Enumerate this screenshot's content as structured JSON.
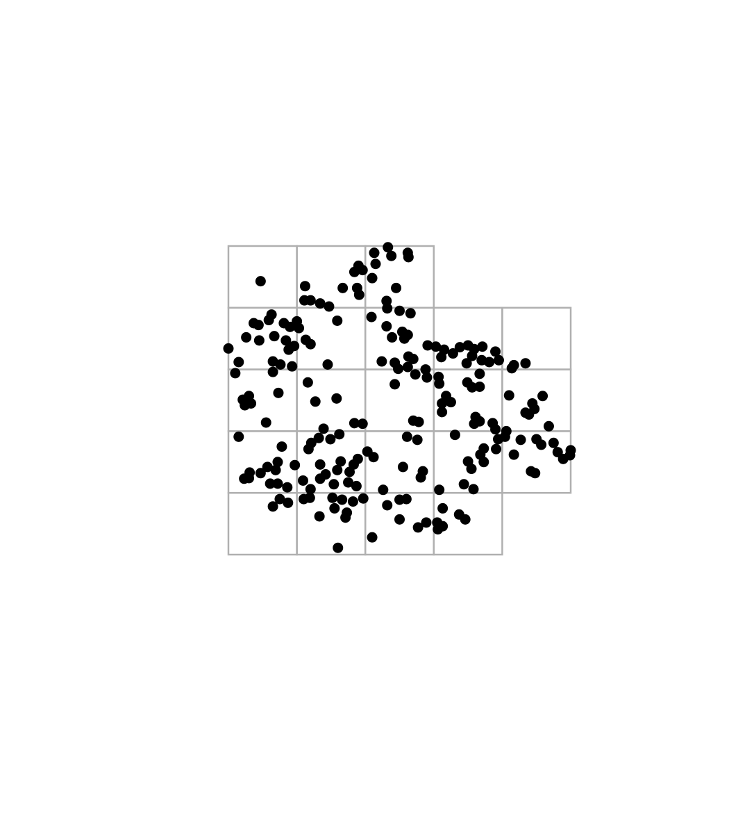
{
  "chart_data": {
    "type": "scatter",
    "color": "#000000",
    "grid_color": "#b0b0b0",
    "xlim": [
      0,
      5
    ],
    "ylim": [
      0,
      5
    ],
    "cells": [
      [
        0,
        4
      ],
      [
        1,
        4
      ],
      [
        2,
        4
      ],
      [
        0,
        3
      ],
      [
        1,
        3
      ],
      [
        2,
        3
      ],
      [
        3,
        3
      ],
      [
        4,
        3
      ],
      [
        0,
        2
      ],
      [
        1,
        2
      ],
      [
        2,
        2
      ],
      [
        3,
        2
      ],
      [
        4,
        2
      ],
      [
        0,
        1
      ],
      [
        1,
        1
      ],
      [
        2,
        1
      ],
      [
        3,
        1
      ],
      [
        4,
        1
      ],
      [
        0,
        0
      ],
      [
        1,
        0
      ],
      [
        2,
        0
      ],
      [
        3,
        0
      ]
    ],
    "x": [
      0.47,
      0.0,
      1.12,
      1.11,
      1.2,
      1.34,
      1.47,
      1.67,
      1.88,
      1.91,
      1.84,
      1.9,
      1.96,
      2.1,
      2.13,
      2.15,
      2.33,
      2.38,
      2.62,
      2.63,
      2.45,
      2.31,
      2.32,
      2.5,
      2.66,
      2.09,
      1.59,
      0.63,
      0.59,
      0.37,
      0.44,
      0.81,
      0.9,
      1.0,
      1.03,
      0.26,
      0.45,
      0.67,
      0.84,
      0.88,
      0.96,
      1.13,
      1.2,
      0.15,
      0.1,
      0.65,
      0.76,
      0.93,
      0.65,
      1.45,
      2.31,
      2.39,
      2.54,
      2.57,
      2.62,
      2.24,
      2.43,
      2.48,
      2.63,
      2.7,
      2.62,
      2.73,
      2.88,
      2.9,
      2.43,
      2.91,
      3.03,
      3.15,
      3.11,
      3.28,
      3.38,
      3.5,
      3.59,
      3.71,
      3.56,
      3.7,
      3.48,
      3.9,
      3.95,
      3.81,
      4.17,
      4.34,
      4.14,
      3.67,
      3.07,
      3.08,
      3.49,
      3.56,
      3.67,
      3.18,
      3.25,
      3.12,
      3.12,
      4.1,
      4.59,
      4.44,
      4.47,
      4.34,
      4.39,
      4.68,
      3.61,
      3.59,
      3.67,
      3.86,
      3.9,
      4.06,
      3.94,
      4.04,
      4.27,
      4.5,
      4.57,
      4.75,
      4.81,
      4.89,
      4.99,
      5.0,
      4.17,
      3.91,
      3.73,
      3.68,
      3.73,
      3.5,
      3.55,
      4.42,
      4.48,
      3.31,
      3.44,
      3.58,
      3.08,
      3.13,
      3.37,
      3.46,
      3.05,
      3.06,
      3.13,
      2.89,
      2.77,
      2.5,
      2.5,
      2.6,
      2.32,
      2.26,
      2.1,
      1.6,
      1.71,
      1.73,
      1.55,
      1.33,
      1.97,
      1.82,
      1.66,
      1.52,
      1.87,
      1.75,
      1.54,
      1.19,
      1.1,
      0.87,
      0.75,
      0.65,
      0.86,
      0.72,
      0.61,
      1.09,
      1.2,
      1.34,
      1.42,
      1.59,
      1.64,
      1.77,
      1.83,
      1.89,
      2.03,
      2.12,
      1.34,
      1.17,
      1.21,
      1.32,
      1.39,
      1.49,
      1.62,
      1.84,
      1.96,
      1.58,
      1.27,
      1.16,
      0.73,
      0.3,
      0.21,
      0.24,
      0.33,
      0.55,
      0.15,
      0.78,
      0.97,
      0.72,
      0.57,
      0.69,
      0.47,
      0.31,
      0.23,
      0.3,
      2.55,
      2.84,
      2.81,
      2.7,
      2.78,
      2.61,
      2.76
    ],
    "values": [
      4.43,
      3.34,
      4.35,
      4.12,
      4.12,
      4.07,
      4.02,
      4.32,
      4.32,
      4.21,
      4.58,
      4.68,
      4.61,
      4.48,
      4.89,
      4.71,
      4.98,
      4.84,
      4.89,
      4.82,
      4.32,
      4.11,
      3.99,
      3.95,
      3.91,
      3.85,
      3.79,
      3.89,
      3.8,
      3.75,
      3.72,
      3.75,
      3.69,
      3.78,
      3.67,
      3.52,
      3.47,
      3.54,
      3.47,
      3.32,
      3.38,
      3.48,
      3.41,
      3.12,
      2.94,
      3.13,
      3.08,
      3.05,
      2.96,
      3.08,
      3.7,
      3.52,
      3.61,
      3.5,
      3.56,
      3.13,
      3.11,
      3.01,
      3.21,
      3.17,
      3.04,
      2.92,
      3.0,
      2.87,
      2.76,
      3.39,
      3.37,
      3.32,
      3.2,
      3.26,
      3.36,
      3.39,
      3.33,
      3.37,
      3.22,
      3.15,
      3.1,
      3.29,
      3.15,
      3.12,
      3.07,
      3.1,
      3.02,
      2.93,
      2.88,
      2.77,
      2.79,
      2.71,
      2.72,
      2.57,
      2.47,
      2.45,
      2.31,
      2.58,
      2.57,
      2.45,
      2.36,
      2.3,
      2.27,
      2.08,
      2.23,
      2.12,
      2.16,
      2.13,
      2.03,
      2.0,
      1.87,
      1.91,
      1.86,
      1.87,
      1.78,
      1.81,
      1.66,
      1.55,
      1.61,
      1.69,
      1.62,
      1.71,
      1.72,
      1.62,
      1.5,
      1.51,
      1.39,
      1.35,
      1.32,
      1.94,
      1.14,
      1.06,
      1.05,
      0.75,
      0.65,
      0.57,
      0.52,
      0.41,
      0.46,
      0.52,
      0.44,
      0.57,
      0.89,
      0.9,
      0.8,
      1.05,
      0.28,
      0.11,
      0.6,
      0.68,
      0.75,
      0.62,
      0.91,
      0.86,
      0.89,
      0.92,
      1.11,
      1.17,
      1.14,
      0.92,
      0.9,
      0.84,
      0.9,
      0.78,
      1.09,
      1.15,
      1.15,
      1.2,
      1.06,
      1.23,
      1.3,
      1.37,
      1.51,
      1.34,
      1.46,
      1.55,
      1.67,
      1.58,
      1.46,
      1.71,
      1.81,
      1.89,
      2.04,
      1.87,
      1.95,
      2.13,
      2.12,
      2.53,
      2.48,
      2.79,
      2.62,
      2.57,
      2.51,
      2.42,
      2.45,
      2.14,
      1.91,
      1.75,
      1.45,
      1.5,
      1.42,
      1.37,
      1.32,
      1.33,
      1.23,
      1.24,
      1.42,
      1.35,
      1.25,
      2.17,
      2.15,
      1.91,
      1.86
    ]
  }
}
